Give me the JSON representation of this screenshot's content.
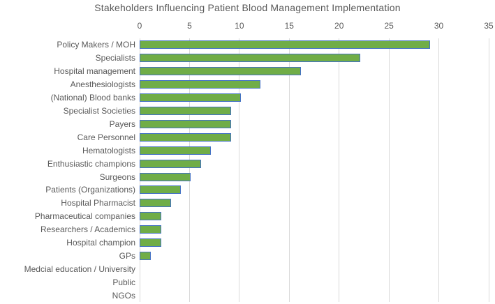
{
  "chart_data": {
    "type": "bar",
    "orientation": "horizontal",
    "title": "Stakeholders Influencing Patient Blood Management Implementation",
    "categories": [
      "Policy Makers / MOH",
      "Specialists",
      "Hospital management",
      "Anesthesiologists",
      "(National) Blood banks",
      "Specialist Societies",
      "Payers",
      "Care Personnel",
      "Hematologists",
      "Enthusiastic champions",
      "Surgeons",
      "Patients (Organizations)",
      "Hospital Pharmacist",
      "Pharmaceutical companies",
      "Researchers / Academics",
      "Hospital champion",
      "GPs",
      "Medcial education / University",
      "Public",
      "NGOs"
    ],
    "values": [
      29,
      22,
      16,
      12,
      10,
      9,
      9,
      9,
      7,
      6,
      5,
      4,
      3,
      2,
      2,
      2,
      1,
      0,
      0,
      0
    ],
    "x_ticks": [
      0,
      5,
      10,
      15,
      20,
      25,
      30,
      35
    ],
    "xlim": [
      0,
      35
    ],
    "xlabel": "",
    "ylabel": "",
    "grid": "vertical",
    "legend": "none",
    "colors": {
      "bar_fill": "#70AD47",
      "bar_border": "#4472C4",
      "gridline": "#D9D9D9",
      "title_text": "#595959",
      "label_text": "#595959"
    }
  }
}
